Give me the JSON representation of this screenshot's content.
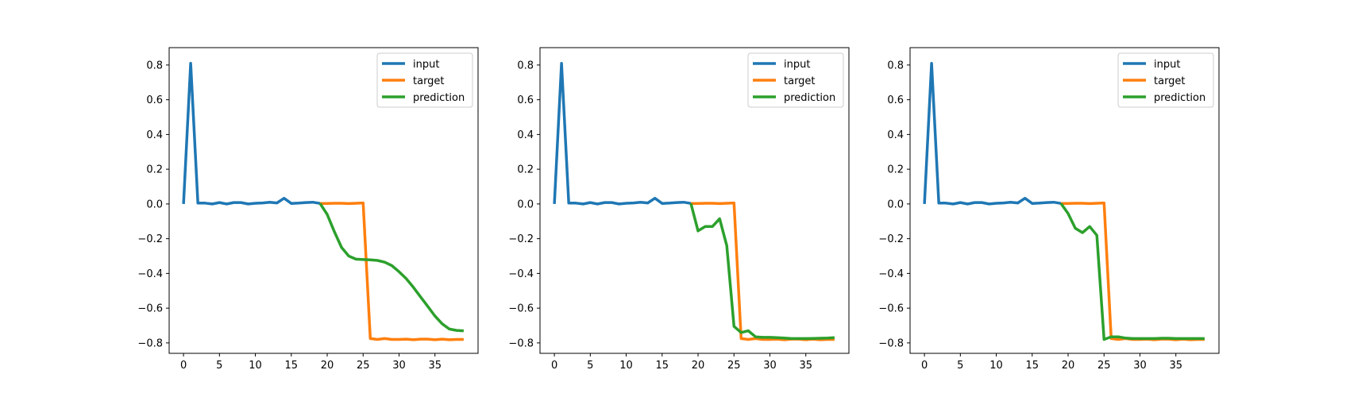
{
  "chart_data": [
    {
      "type": "line",
      "xlim": [
        -2,
        41
      ],
      "ylim": [
        -0.86,
        0.9
      ],
      "xticks": [
        0,
        5,
        10,
        15,
        20,
        25,
        30,
        35
      ],
      "yticks": [
        0.8,
        0.6,
        0.4,
        0.2,
        0.0,
        -0.2,
        -0.4,
        -0.6,
        -0.8
      ],
      "ytick_labels": [
        "0.8",
        "0.6",
        "0.4",
        "0.2",
        "0.0",
        "−0.2",
        "−0.4",
        "−0.6",
        "−0.8"
      ],
      "legend_position": "top-right",
      "series": [
        {
          "name": "input",
          "color": "#1f77b4",
          "x": [
            0,
            1,
            2,
            3,
            4,
            5,
            6,
            7,
            8,
            9,
            10,
            11,
            12,
            13,
            14,
            15,
            16,
            17,
            18,
            19
          ],
          "y": [
            0.0,
            0.81,
            0.005,
            0.005,
            0.0,
            0.008,
            0.0,
            0.008,
            0.008,
            0.0,
            0.004,
            0.006,
            0.01,
            0.006,
            0.033,
            0.003,
            0.005,
            0.008,
            0.01,
            0.003
          ]
        },
        {
          "name": "target",
          "color": "#ff7f0e",
          "x": [
            19,
            20,
            21,
            22,
            23,
            24,
            25,
            26,
            27,
            28,
            29,
            30,
            31,
            32,
            33,
            34,
            35,
            36,
            37,
            38,
            39
          ],
          "y": [
            0.003,
            0.003,
            0.004,
            0.004,
            0.002,
            0.004,
            0.006,
            -0.775,
            -0.78,
            -0.775,
            -0.78,
            -0.78,
            -0.778,
            -0.782,
            -0.778,
            -0.778,
            -0.782,
            -0.778,
            -0.782,
            -0.78,
            -0.78
          ]
        },
        {
          "name": "prediction",
          "color": "#2ca02c",
          "x": [
            19,
            20,
            21,
            22,
            23,
            24,
            25,
            26,
            27,
            28,
            29,
            30,
            31,
            32,
            33,
            34,
            35,
            36,
            37,
            38,
            39
          ],
          "y": [
            0.003,
            -0.06,
            -0.16,
            -0.25,
            -0.3,
            -0.318,
            -0.32,
            -0.322,
            -0.325,
            -0.335,
            -0.355,
            -0.39,
            -0.43,
            -0.48,
            -0.535,
            -0.59,
            -0.645,
            -0.69,
            -0.72,
            -0.728,
            -0.73
          ]
        }
      ]
    },
    {
      "type": "line",
      "xlim": [
        -2,
        41
      ],
      "ylim": [
        -0.86,
        0.9
      ],
      "xticks": [
        0,
        5,
        10,
        15,
        20,
        25,
        30,
        35
      ],
      "yticks": [
        0.8,
        0.6,
        0.4,
        0.2,
        0.0,
        -0.2,
        -0.4,
        -0.6,
        -0.8
      ],
      "ytick_labels": [
        "0.8",
        "0.6",
        "0.4",
        "0.2",
        "0.0",
        "−0.2",
        "−0.4",
        "−0.6",
        "−0.8"
      ],
      "legend_position": "top-right",
      "series": [
        {
          "name": "input",
          "color": "#1f77b4",
          "x": [
            0,
            1,
            2,
            3,
            4,
            5,
            6,
            7,
            8,
            9,
            10,
            11,
            12,
            13,
            14,
            15,
            16,
            17,
            18,
            19
          ],
          "y": [
            0.0,
            0.81,
            0.005,
            0.005,
            0.0,
            0.008,
            0.0,
            0.008,
            0.008,
            0.0,
            0.004,
            0.006,
            0.01,
            0.006,
            0.033,
            0.003,
            0.005,
            0.008,
            0.01,
            0.003
          ]
        },
        {
          "name": "target",
          "color": "#ff7f0e",
          "x": [
            19,
            20,
            21,
            22,
            23,
            24,
            25,
            26,
            27,
            28,
            29,
            30,
            31,
            32,
            33,
            34,
            35,
            36,
            37,
            38,
            39
          ],
          "y": [
            0.003,
            0.003,
            0.004,
            0.004,
            0.002,
            0.004,
            0.006,
            -0.775,
            -0.78,
            -0.775,
            -0.78,
            -0.78,
            -0.778,
            -0.782,
            -0.778,
            -0.778,
            -0.782,
            -0.778,
            -0.782,
            -0.78,
            -0.78
          ]
        },
        {
          "name": "prediction",
          "color": "#2ca02c",
          "x": [
            19,
            20,
            21,
            22,
            23,
            24,
            25,
            26,
            27,
            28,
            29,
            30,
            31,
            32,
            33,
            34,
            35,
            36,
            37,
            38,
            39
          ],
          "y": [
            0.003,
            -0.155,
            -0.13,
            -0.13,
            -0.085,
            -0.24,
            -0.705,
            -0.74,
            -0.73,
            -0.765,
            -0.768,
            -0.768,
            -0.77,
            -0.772,
            -0.775,
            -0.775,
            -0.775,
            -0.774,
            -0.773,
            -0.772,
            -0.77
          ]
        }
      ]
    },
    {
      "type": "line",
      "xlim": [
        -2,
        41
      ],
      "ylim": [
        -0.86,
        0.9
      ],
      "xticks": [
        0,
        5,
        10,
        15,
        20,
        25,
        30,
        35
      ],
      "yticks": [
        0.8,
        0.6,
        0.4,
        0.2,
        0.0,
        -0.2,
        -0.4,
        -0.6,
        -0.8
      ],
      "ytick_labels": [
        "0.8",
        "0.6",
        "0.4",
        "0.2",
        "0.0",
        "−0.2",
        "−0.4",
        "−0.6",
        "−0.8"
      ],
      "legend_position": "top-right",
      "series": [
        {
          "name": "input",
          "color": "#1f77b4",
          "x": [
            0,
            1,
            2,
            3,
            4,
            5,
            6,
            7,
            8,
            9,
            10,
            11,
            12,
            13,
            14,
            15,
            16,
            17,
            18,
            19
          ],
          "y": [
            0.0,
            0.81,
            0.005,
            0.005,
            0.0,
            0.008,
            0.0,
            0.008,
            0.008,
            0.0,
            0.004,
            0.006,
            0.01,
            0.006,
            0.033,
            0.003,
            0.005,
            0.008,
            0.01,
            0.003
          ]
        },
        {
          "name": "target",
          "color": "#ff7f0e",
          "x": [
            19,
            20,
            21,
            22,
            23,
            24,
            25,
            26,
            27,
            28,
            29,
            30,
            31,
            32,
            33,
            34,
            35,
            36,
            37,
            38,
            39
          ],
          "y": [
            0.003,
            0.003,
            0.004,
            0.004,
            0.002,
            0.004,
            0.006,
            -0.775,
            -0.78,
            -0.775,
            -0.78,
            -0.78,
            -0.778,
            -0.782,
            -0.778,
            -0.778,
            -0.782,
            -0.778,
            -0.782,
            -0.78,
            -0.78
          ]
        },
        {
          "name": "prediction",
          "color": "#2ca02c",
          "x": [
            19,
            20,
            21,
            22,
            23,
            24,
            25,
            26,
            27,
            28,
            29,
            30,
            31,
            32,
            33,
            34,
            35,
            36,
            37,
            38,
            39
          ],
          "y": [
            0.003,
            -0.055,
            -0.14,
            -0.165,
            -0.13,
            -0.18,
            -0.78,
            -0.765,
            -0.765,
            -0.772,
            -0.775,
            -0.775,
            -0.775,
            -0.775,
            -0.773,
            -0.773,
            -0.775,
            -0.775,
            -0.775,
            -0.775,
            -0.775
          ]
        }
      ]
    }
  ]
}
